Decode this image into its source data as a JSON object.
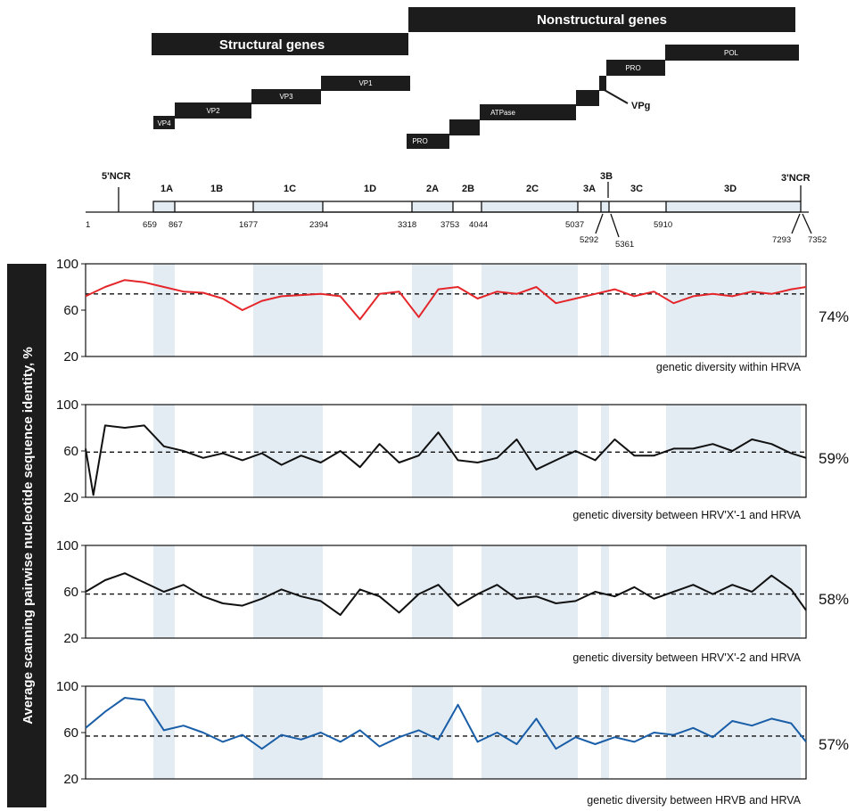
{
  "gene_blocks": {
    "structural_label": "Structural genes",
    "nonstructural_label": "Nonstructural genes",
    "proteins": [
      "VP4",
      "VP2",
      "VP3",
      "VP1",
      "PRO",
      "ATPase",
      "PRO",
      "POL"
    ],
    "vpg_label": "VPg"
  },
  "genome_map": {
    "ncr_labels": [
      "5'NCR",
      "3'NCR"
    ],
    "segments": [
      "1A",
      "1B",
      "1C",
      "1D",
      "2A",
      "2B",
      "2C",
      "3A",
      "3B",
      "3C",
      "3D"
    ],
    "positions": [
      "1",
      "659",
      "867",
      "1677",
      "2394",
      "3318",
      "3753",
      "4044",
      "5037",
      "5292",
      "5361",
      "5910",
      "7293",
      "7352"
    ]
  },
  "y_axis_label": "Average scanning pairwise nucleotide sequence identity, %",
  "colors": {
    "red": "#e4262b",
    "black": "#111111",
    "blue": "#1a5ea8",
    "shade": "#e3ecf3"
  },
  "chart_data": [
    {
      "type": "line",
      "caption": "genetic diversity within HRVA",
      "percent_label": "74%",
      "mean": 74,
      "ylim": [
        20,
        100
      ],
      "yticks": [
        "100",
        "60",
        "20"
      ],
      "series_color": "#e4262b",
      "x": [
        1,
        200,
        400,
        600,
        800,
        1000,
        1200,
        1400,
        1600,
        1800,
        2000,
        2200,
        2400,
        2600,
        2800,
        3000,
        3200,
        3400,
        3600,
        3800,
        4000,
        4200,
        4400,
        4600,
        4800,
        5000,
        5200,
        5400,
        5600,
        5800,
        6000,
        6200,
        6400,
        6600,
        6800,
        7000,
        7200,
        7352
      ],
      "y": [
        72,
        80,
        86,
        84,
        80,
        76,
        75,
        70,
        60,
        68,
        72,
        73,
        74,
        72,
        52,
        74,
        76,
        54,
        78,
        80,
        70,
        76,
        74,
        80,
        66,
        70,
        74,
        78,
        72,
        76,
        66,
        72,
        74,
        72,
        76,
        74,
        78,
        80
      ]
    },
    {
      "type": "line",
      "caption": "genetic diversity between HRV'X'-1 and HRVA",
      "percent_label": "59%",
      "mean": 59,
      "ylim": [
        20,
        100
      ],
      "yticks": [
        "100",
        "60",
        "20"
      ],
      "series_color": "#111111",
      "x": [
        1,
        80,
        200,
        400,
        600,
        800,
        1000,
        1200,
        1400,
        1600,
        1800,
        2000,
        2200,
        2400,
        2600,
        2800,
        3000,
        3200,
        3400,
        3600,
        3800,
        4000,
        4200,
        4400,
        4600,
        4800,
        5000,
        5200,
        5400,
        5600,
        5800,
        6000,
        6200,
        6400,
        6600,
        6800,
        7000,
        7200,
        7352
      ],
      "y": [
        62,
        22,
        82,
        80,
        82,
        64,
        60,
        54,
        58,
        52,
        58,
        48,
        56,
        50,
        60,
        46,
        66,
        50,
        56,
        76,
        52,
        50,
        54,
        70,
        44,
        52,
        60,
        52,
        70,
        56,
        56,
        62,
        62,
        66,
        60,
        70,
        66,
        58,
        54
      ]
    },
    {
      "type": "line",
      "caption": "genetic diversity between HRV'X'-2 and HRVA",
      "percent_label": "58%",
      "mean": 58,
      "ylim": [
        20,
        100
      ],
      "yticks": [
        "100",
        "60",
        "20"
      ],
      "series_color": "#111111",
      "x": [
        1,
        200,
        400,
        600,
        800,
        1000,
        1200,
        1400,
        1600,
        1800,
        2000,
        2200,
        2400,
        2600,
        2800,
        3000,
        3200,
        3400,
        3600,
        3800,
        4000,
        4200,
        4400,
        4600,
        4800,
        5000,
        5200,
        5400,
        5600,
        5800,
        6000,
        6200,
        6400,
        6600,
        6800,
        7000,
        7200,
        7352
      ],
      "y": [
        60,
        70,
        76,
        68,
        60,
        66,
        56,
        50,
        48,
        54,
        62,
        56,
        52,
        40,
        62,
        56,
        42,
        58,
        66,
        48,
        58,
        66,
        54,
        56,
        50,
        52,
        60,
        56,
        64,
        54,
        60,
        66,
        58,
        66,
        60,
        74,
        62,
        44
      ]
    },
    {
      "type": "line",
      "caption": "genetic diversity between HRVB and HRVA",
      "percent_label": "57%",
      "mean": 57,
      "ylim": [
        20,
        100
      ],
      "yticks": [
        "100",
        "60",
        "20"
      ],
      "series_color": "#1a5ea8",
      "x": [
        1,
        200,
        400,
        600,
        800,
        1000,
        1200,
        1400,
        1600,
        1800,
        2000,
        2200,
        2400,
        2600,
        2800,
        3000,
        3200,
        3400,
        3600,
        3800,
        4000,
        4200,
        4400,
        4600,
        4800,
        5000,
        5200,
        5400,
        5600,
        5800,
        6000,
        6200,
        6400,
        6600,
        6800,
        7000,
        7200,
        7352
      ],
      "y": [
        64,
        78,
        90,
        88,
        62,
        66,
        60,
        52,
        58,
        46,
        58,
        54,
        60,
        52,
        62,
        48,
        56,
        62,
        54,
        84,
        52,
        60,
        50,
        72,
        46,
        56,
        50,
        56,
        52,
        60,
        58,
        64,
        56,
        70,
        66,
        72,
        68,
        52
      ]
    }
  ]
}
